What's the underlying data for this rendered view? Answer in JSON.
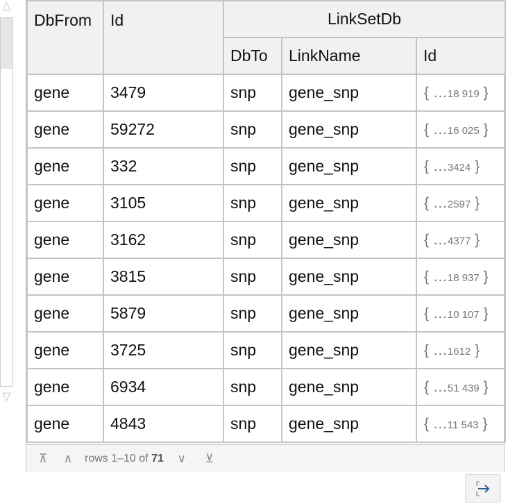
{
  "headers": {
    "dbfrom": "DbFrom",
    "id": "Id",
    "linksetdb": "LinkSetDb",
    "dbto": "DbTo",
    "linkname": "LinkName",
    "linkid": "Id"
  },
  "rows": [
    {
      "dbfrom": "gene",
      "id": "3479",
      "dbto": "snp",
      "linkname": "gene_snp",
      "count": "18 919"
    },
    {
      "dbfrom": "gene",
      "id": "59272",
      "dbto": "snp",
      "linkname": "gene_snp",
      "count": "16 025"
    },
    {
      "dbfrom": "gene",
      "id": "332",
      "dbto": "snp",
      "linkname": "gene_snp",
      "count": "3424"
    },
    {
      "dbfrom": "gene",
      "id": "3105",
      "dbto": "snp",
      "linkname": "gene_snp",
      "count": "2597"
    },
    {
      "dbfrom": "gene",
      "id": "3162",
      "dbto": "snp",
      "linkname": "gene_snp",
      "count": "4377"
    },
    {
      "dbfrom": "gene",
      "id": "3815",
      "dbto": "snp",
      "linkname": "gene_snp",
      "count": "18 937"
    },
    {
      "dbfrom": "gene",
      "id": "5879",
      "dbto": "snp",
      "linkname": "gene_snp",
      "count": "10 107"
    },
    {
      "dbfrom": "gene",
      "id": "3725",
      "dbto": "snp",
      "linkname": "gene_snp",
      "count": "1612"
    },
    {
      "dbfrom": "gene",
      "id": "6934",
      "dbto": "snp",
      "linkname": "gene_snp",
      "count": "51 439"
    },
    {
      "dbfrom": "gene",
      "id": "4843",
      "dbto": "snp",
      "linkname": "gene_snp",
      "count": "11 543"
    }
  ],
  "footer": {
    "rows_prefix": "rows 1–10 of ",
    "total": "71"
  },
  "icons": {
    "first": "first-page-icon",
    "prev": "previous-page-icon",
    "next": "next-page-icon",
    "last": "last-page-icon",
    "open": "open-in-window-icon"
  },
  "colors": {
    "border": "#c4c4c4",
    "header_bg": "#f1f1f1",
    "muted": "#777777"
  }
}
